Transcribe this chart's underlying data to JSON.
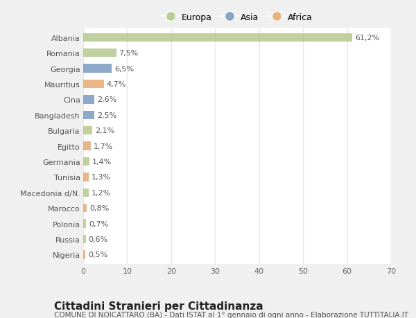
{
  "categories": [
    "Albania",
    "Romania",
    "Georgia",
    "Mauritius",
    "Cina",
    "Bangladesh",
    "Bulgaria",
    "Egitto",
    "Germania",
    "Tunisia",
    "Macedonia d/N.",
    "Marocco",
    "Polonia",
    "Russia",
    "Nigeria"
  ],
  "values": [
    61.2,
    7.5,
    6.5,
    4.7,
    2.6,
    2.5,
    2.1,
    1.7,
    1.4,
    1.3,
    1.2,
    0.8,
    0.7,
    0.6,
    0.5
  ],
  "labels": [
    "61,2%",
    "7,5%",
    "6,5%",
    "4,7%",
    "2,6%",
    "2,5%",
    "2,1%",
    "1,7%",
    "1,4%",
    "1,3%",
    "1,2%",
    "0,8%",
    "0,7%",
    "0,6%",
    "0,5%"
  ],
  "colors": [
    "#b5c98e",
    "#b5c98e",
    "#7a9bbf",
    "#e8aa72",
    "#7a9bbf",
    "#7a9bbf",
    "#b5c98e",
    "#e8aa72",
    "#b5c98e",
    "#e8aa72",
    "#b5c98e",
    "#e8aa72",
    "#b5c98e",
    "#b5c98e",
    "#e8aa72"
  ],
  "legend_labels": [
    "Europa",
    "Asia",
    "Africa"
  ],
  "legend_colors": [
    "#b5c98e",
    "#7a9bbf",
    "#e8aa72"
  ],
  "title": "Cittadini Stranieri per Cittadinanza",
  "subtitle": "COMUNE DI NOICATTARO (BA) - Dati ISTAT al 1° gennaio di ogni anno - Elaborazione TUTTITALIA.IT",
  "xlim": [
    0,
    70
  ],
  "xticks": [
    0,
    10,
    20,
    30,
    40,
    50,
    60,
    70
  ],
  "figure_bg": "#f0f0f0",
  "axes_bg": "#ffffff",
  "grid_color": "#e8e8e8",
  "bar_height": 0.55,
  "label_fontsize": 8,
  "title_fontsize": 11,
  "subtitle_fontsize": 7.5,
  "tick_fontsize": 8,
  "legend_fontsize": 9
}
